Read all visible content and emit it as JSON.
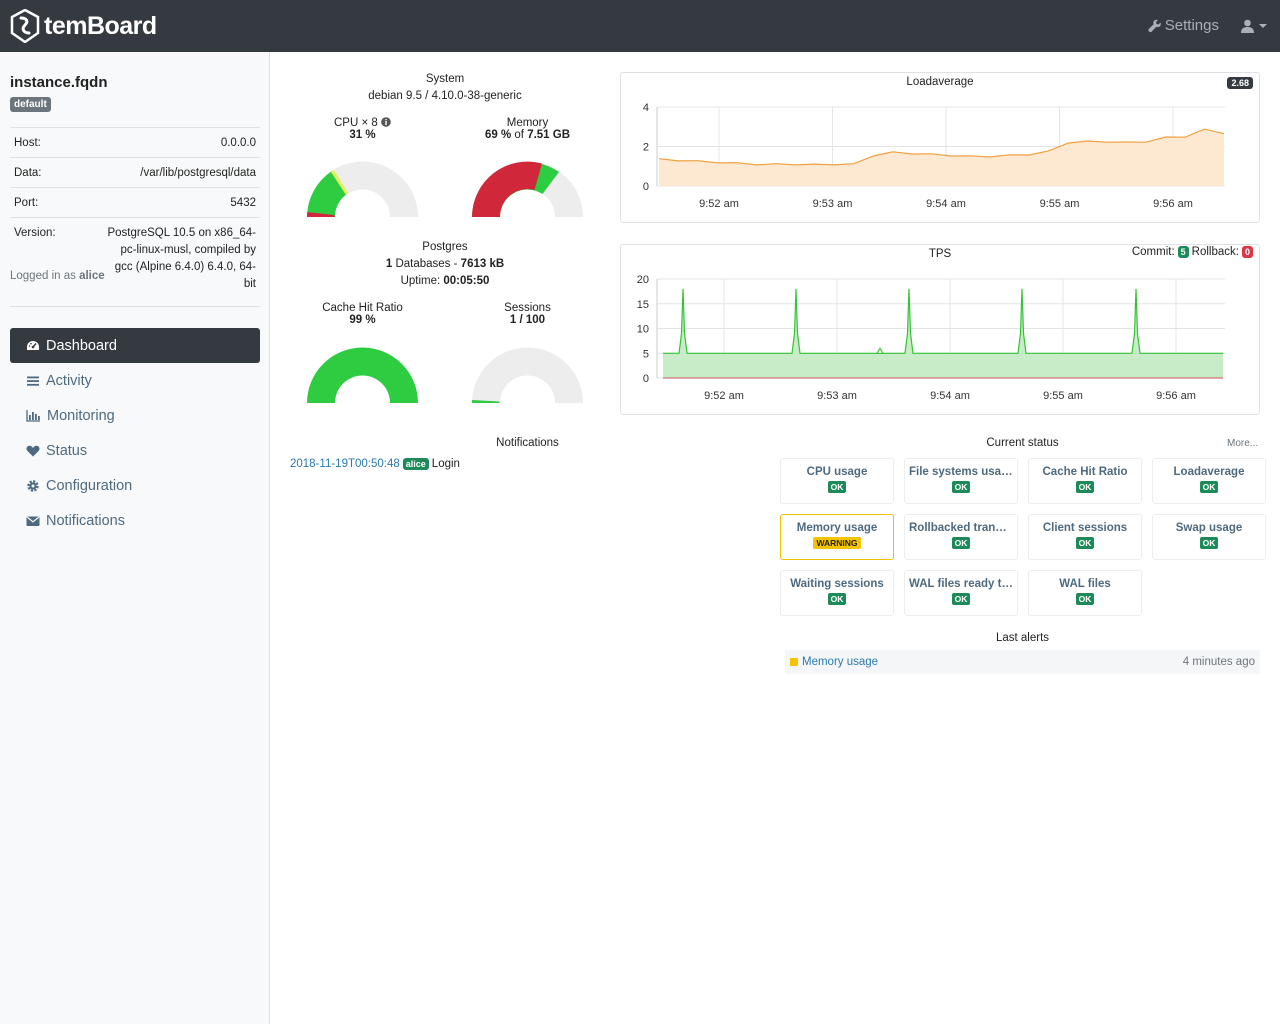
{
  "topbar": {
    "brand": "temBoard",
    "settings_label": "Settings"
  },
  "instance": {
    "name": "instance.fqdn",
    "group": "default",
    "rows": [
      {
        "key": "Host:",
        "value": "0.0.0.0"
      },
      {
        "key": "Data:",
        "value": "/var/lib/postgresql/data"
      },
      {
        "key": "Port:",
        "value": "5432"
      },
      {
        "key": "Version:",
        "value": "PostgreSQL 10.5 on x86_64-pc-linux-musl, compiled by gcc (Alpine 6.4.0) 6.4.0, 64-bit"
      }
    ],
    "logged_prefix": "Logged in as",
    "logged_user": "alice"
  },
  "nav": [
    {
      "label": "Dashboard",
      "icon": "dashboard-icon",
      "active": true
    },
    {
      "label": "Activity",
      "icon": "list-icon",
      "active": false
    },
    {
      "label": "Monitoring",
      "icon": "bar-chart-icon",
      "active": false
    },
    {
      "label": "Status",
      "icon": "heart-icon",
      "active": false
    },
    {
      "label": "Configuration",
      "icon": "gear-icon",
      "active": false
    },
    {
      "label": "Notifications",
      "icon": "envelope-icon",
      "active": false
    }
  ],
  "system": {
    "title": "System",
    "os": "debian 9.5 / 4.10.0-38-generic",
    "cpu_label": "CPU × 8",
    "cpu_value": "31 %",
    "cpu_pct": 31,
    "mem_label": "Memory",
    "mem_pct_text": "69 %",
    "mem_of": "of",
    "mem_total": "7.51 GB",
    "mem_pct": 69
  },
  "postgres": {
    "title": "Postgres",
    "db_count": "1",
    "db_mid": "Databases -",
    "db_size": "7613 kB",
    "uptime_label": "Uptime:",
    "uptime": "00:05:50",
    "cache_label": "Cache Hit Ratio",
    "cache_value": "99 %",
    "cache_pct": 99,
    "sessions_label": "Sessions",
    "sessions_value": "1 / 100",
    "sessions_pct": 1
  },
  "colors": {
    "ok": "#1e8a5a",
    "warning": "#f5c400",
    "gauge_green": "#2ecc40",
    "gauge_red": "#d0283a",
    "gauge_empty": "#ededed",
    "load_line": "#f0a040",
    "load_fill": "#fde8d2",
    "tps_line": "#33c433",
    "tps_fill": "#c8ecc8",
    "topbar": "#343a40"
  },
  "chart_data": [
    {
      "type": "area",
      "title": "Loadaverage",
      "badge": "2.68",
      "x_ticks": [
        "9:52 am",
        "9:53 am",
        "9:54 am",
        "9:55 am",
        "9:56 am"
      ],
      "y_ticks": [
        "0",
        "2",
        "4"
      ],
      "ylim": [
        0,
        4
      ],
      "series": [
        {
          "values": [
            1.35,
            1.3,
            1.25,
            1.2,
            1.15,
            1.1,
            1.1,
            1.1,
            1.08,
            1.1,
            1.1,
            1.55,
            1.7,
            1.65,
            1.6,
            1.55,
            1.5,
            1.5,
            1.55,
            1.6,
            1.75,
            2.2,
            2.25,
            2.25,
            2.2,
            2.25,
            2.45,
            2.5,
            2.85,
            2.68
          ]
        }
      ]
    },
    {
      "type": "area",
      "title": "TPS",
      "legend_commit": "Commit:",
      "commit_value": "5",
      "legend_rollback": "Rollback:",
      "rollback_value": "0",
      "x_ticks": [
        "9:52 am",
        "9:53 am",
        "9:54 am",
        "9:55 am",
        "9:56 am"
      ],
      "y_ticks": [
        "0",
        "5",
        "10",
        "15",
        "20"
      ],
      "ylim": [
        0,
        20
      ],
      "spikes_at_minutes": [
        0.8,
        1.8,
        2.8,
        3.8,
        4.8
      ],
      "baseline": 5,
      "spike_peak": 18
    }
  ],
  "notifications": {
    "title": "Notifications",
    "items": [
      {
        "date": "2018-11-19T00:50:48",
        "user": "alice",
        "text": "Login"
      }
    ]
  },
  "status": {
    "title": "Current status",
    "more": "More...",
    "items": [
      {
        "name": "CPU usage",
        "state": "OK"
      },
      {
        "name": "File systems usage",
        "state": "OK"
      },
      {
        "name": "Cache Hit Ratio",
        "state": "OK"
      },
      {
        "name": "Loadaverage",
        "state": "OK"
      },
      {
        "name": "Memory usage",
        "state": "WARNING"
      },
      {
        "name": "Rollbacked transactions",
        "state": "OK"
      },
      {
        "name": "Client sessions",
        "state": "OK"
      },
      {
        "name": "Swap usage",
        "state": "OK"
      },
      {
        "name": "Waiting sessions",
        "state": "OK"
      },
      {
        "name": "WAL files ready to archive",
        "state": "OK"
      },
      {
        "name": "WAL files",
        "state": "OK"
      }
    ]
  },
  "alerts": {
    "title": "Last alerts",
    "items": [
      {
        "name": "Memory usage",
        "ago": "4 minutes ago"
      }
    ]
  }
}
